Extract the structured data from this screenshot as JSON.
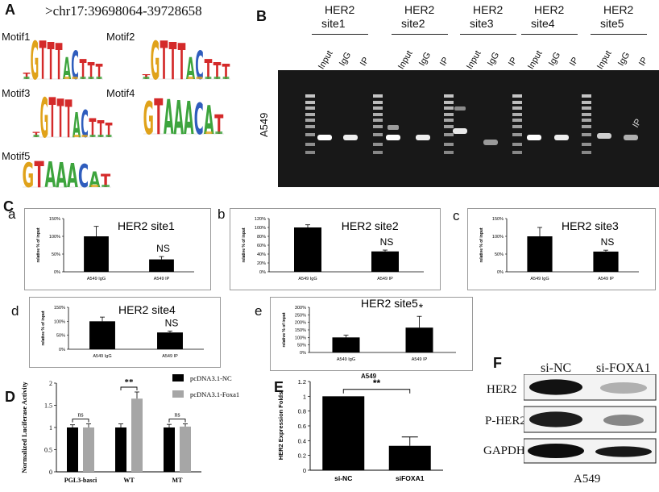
{
  "panel_letters": {
    "A": "A",
    "B": "B",
    "C": "C",
    "D": "D",
    "E": "E",
    "F": "F"
  },
  "panelA": {
    "coord": ">chr17:39698064-39728658",
    "motifs": [
      {
        "label": "Motif1",
        "seq": [
          "T",
          "G",
          "T",
          "T",
          "T",
          "A",
          "C",
          "T",
          "T",
          "T"
        ]
      },
      {
        "label": "Motif2",
        "seq": [
          "T",
          "G",
          "T",
          "T",
          "T",
          "A",
          "C",
          "T",
          "T",
          "T"
        ]
      },
      {
        "label": "Motif3",
        "seq": [
          "T",
          "G",
          "T",
          "T",
          "T",
          "A",
          "C",
          "T",
          "T",
          "T"
        ]
      },
      {
        "label": "Motif4",
        "seq": [
          "G",
          "T",
          "A",
          "A",
          "A",
          "C",
          "A",
          "T"
        ]
      },
      {
        "label": "Motif5",
        "seq": [
          "G",
          "T",
          "A",
          "A",
          "A",
          "C",
          "A",
          "T"
        ]
      }
    ]
  },
  "panelB": {
    "cell_line": "A549",
    "sites": [
      {
        "title1": "HER2",
        "title2": "site1"
      },
      {
        "title1": "HER2",
        "title2": "site2"
      },
      {
        "title1": "HER2",
        "title2": "site3"
      },
      {
        "title1": "HER2",
        "title2": "site4"
      },
      {
        "title1": "HER2",
        "title2": "site5"
      }
    ],
    "lanes": [
      "Input",
      "IgG",
      "IP"
    ],
    "band_label": "IP"
  },
  "panelC": {
    "ylabel": "relative % of input",
    "charts": [
      {
        "sub": "a",
        "title": "HER2 site1",
        "ticks": [
          "150%",
          "100%",
          "50%",
          "0%"
        ],
        "ymax": 150,
        "categories": [
          "A549 IgG",
          "A549 IP"
        ],
        "values": [
          100,
          35
        ],
        "errors": [
          28,
          8
        ],
        "annot": "NS",
        "xlabel": ""
      },
      {
        "sub": "b",
        "title": "HER2 site2",
        "ticks": [
          "120%",
          "100%",
          "80%",
          "60%",
          "40%",
          "20%",
          "0%"
        ],
        "ymax": 120,
        "categories": [
          "A549 IgG",
          "A549 IP"
        ],
        "values": [
          100,
          46
        ],
        "errors": [
          6,
          3
        ],
        "annot": "NS",
        "xlabel": ""
      },
      {
        "sub": "c",
        "title": "HER2 site3",
        "ticks": [
          "150%",
          "100%",
          "50%",
          "0%"
        ],
        "ymax": 150,
        "categories": [
          "A549 IgG",
          "A549 IP"
        ],
        "values": [
          100,
          57
        ],
        "errors": [
          25,
          4
        ],
        "annot": "NS",
        "xlabel": ""
      },
      {
        "sub": "d",
        "title": "HER2 site4",
        "ticks": [
          "150%",
          "100%",
          "50%",
          "0%"
        ],
        "ymax": 150,
        "categories": [
          "A549 IgG",
          "A549 IP"
        ],
        "values": [
          100,
          60
        ],
        "errors": [
          15,
          5
        ],
        "annot": "NS",
        "xlabel": ""
      },
      {
        "sub": "e",
        "title": "HER2 site5",
        "ticks": [
          "300%",
          "250%",
          "200%",
          "150%",
          "100%",
          "50%",
          "0%"
        ],
        "ymax": 300,
        "categories": [
          "A549 IgG",
          "A549 IP"
        ],
        "values": [
          100,
          165
        ],
        "errors": [
          15,
          75
        ],
        "annot": "*",
        "xlabel": "A549"
      }
    ]
  },
  "chart_data": [
    {
      "type": "bar",
      "title": "HER2 site1",
      "ylabel": "relative % of input",
      "categories": [
        "A549 IgG",
        "A549 IP"
      ],
      "values": [
        100,
        35
      ],
      "ylim": [
        0,
        150
      ]
    },
    {
      "type": "bar",
      "title": "HER2 site2",
      "ylabel": "relative % of input",
      "categories": [
        "A549 IgG",
        "A549 IP"
      ],
      "values": [
        100,
        46
      ],
      "ylim": [
        0,
        120
      ]
    },
    {
      "type": "bar",
      "title": "HER2 site3",
      "ylabel": "relative % of input",
      "categories": [
        "A549 IgG",
        "A549 IP"
      ],
      "values": [
        100,
        57
      ],
      "ylim": [
        0,
        150
      ]
    },
    {
      "type": "bar",
      "title": "HER2 site4",
      "ylabel": "relative % of input",
      "categories": [
        "A549 IgG",
        "A549 IP"
      ],
      "values": [
        100,
        60
      ],
      "ylim": [
        0,
        150
      ]
    },
    {
      "type": "bar",
      "title": "HER2 site5",
      "ylabel": "relative % of input",
      "xlabel": "A549",
      "categories": [
        "A549 IgG",
        "A549 IP"
      ],
      "values": [
        100,
        165
      ],
      "ylim": [
        0,
        300
      ]
    },
    {
      "type": "bar",
      "ylabel": "Normalized Luciferase Activity",
      "categories": [
        "PGL3-basci",
        "WT",
        "MT"
      ],
      "series": [
        {
          "name": "pcDNA3.1-NC",
          "values": [
            1.0,
            1.0,
            1.0
          ]
        },
        {
          "name": "pcDNA3.1-Foxa1",
          "values": [
            1.0,
            1.65,
            1.02
          ]
        }
      ],
      "ylim": [
        0,
        2
      ],
      "legend": "top-right"
    },
    {
      "type": "bar",
      "ylabel": "HER2 Expression Folds",
      "categories": [
        "si-NC",
        "siFOXA1"
      ],
      "values": [
        1.0,
        0.33
      ],
      "ylim": [
        0,
        1.2
      ]
    }
  ],
  "panelD": {
    "ylabel": "Normalized Luciferase Activity",
    "ticks": [
      "2",
      "1.5",
      "1",
      "0.5",
      "0"
    ],
    "ymax": 2,
    "categories": [
      "PGL3-basci",
      "WT",
      "MT"
    ],
    "series": [
      {
        "name": "pcDNA3.1-NC",
        "color": "#000000",
        "values": [
          1.0,
          1.0,
          1.0
        ],
        "errors": [
          0.06,
          0.08,
          0.07
        ]
      },
      {
        "name": "pcDNA3.1-Foxa1",
        "color": "#a6a6a6",
        "values": [
          1.0,
          1.65,
          1.02
        ],
        "errors": [
          0.08,
          0.15,
          0.06
        ]
      }
    ],
    "annots": [
      "ns",
      "**",
      "ns"
    ]
  },
  "panelE": {
    "ylabel": "HER2 Expression Folds",
    "ticks": [
      "1.2",
      "1",
      "0.8",
      "0.6",
      "0.4",
      "0.2",
      "0"
    ],
    "ymax": 1.2,
    "categories": [
      "si-NC",
      "siFOXA1"
    ],
    "values": [
      1.0,
      0.33
    ],
    "errors": [
      0,
      0.12
    ],
    "annot": "**"
  },
  "panelF": {
    "conditions": [
      "si-NC",
      "si-FOXA1"
    ],
    "rows": [
      "HER2",
      "P-HER2",
      "GAPDH"
    ],
    "cell_line": "A549"
  }
}
